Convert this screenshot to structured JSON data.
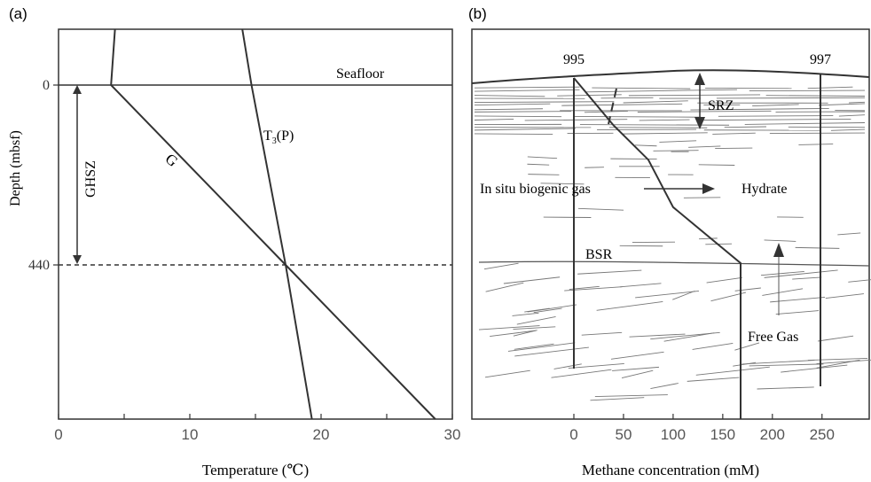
{
  "panel_a": {
    "label": "(a)",
    "seafloor_label": "Seafloor",
    "ghsz_label": "GHSZ",
    "tp_label_main": "T",
    "tp_label_sub": "3",
    "tp_label_tail": "(P)",
    "g_label": "G",
    "ylabel": "Depth (mbsf)",
    "xlabel": "Temperature (℃)",
    "xticks": [
      "0",
      "10",
      "20",
      "30"
    ],
    "yticks": [
      "0",
      "440"
    ]
  },
  "panel_b": {
    "label": "(b)",
    "site_left": "995",
    "site_right": "997",
    "srz_label": "SRZ",
    "biogenic_label": "In situ biogenic gas",
    "hydrate_label": "Hydrate",
    "bsr_label": "BSR",
    "free_gas_label": "Free Gas",
    "xlabel": "Methane concentration (mM)",
    "xticks": [
      "0",
      "50",
      "100",
      "150",
      "200",
      "250"
    ]
  },
  "chart_data": [
    {
      "type": "line",
      "title": "(a)",
      "xlabel": "Temperature (℃)",
      "ylabel": "Depth (mbsf)",
      "xlim": [
        0,
        30
      ],
      "series": [
        {
          "name": "T3(P)",
          "x": [
            14.0,
            14.7,
            17.3,
            19.3
          ],
          "y": [
            -140,
            0,
            440,
            830
          ]
        },
        {
          "name": "G",
          "x": [
            4.3,
            4.0,
            17.3,
            28.7
          ],
          "y": [
            -140,
            0,
            440,
            830
          ]
        }
      ],
      "annotations": [
        "Seafloor",
        "GHSZ"
      ],
      "marks": {
        "seafloor_depth": 0,
        "ghsz_base_depth": 440
      }
    },
    {
      "type": "line",
      "title": "(b)",
      "xlabel": "Methane concentration (mM)",
      "xlim": [
        0,
        300
      ],
      "series": [
        {
          "name": "995",
          "x": [
            0,
            40,
            75,
            100,
            168,
            168
          ],
          "y": [
            0,
            110,
            190,
            300,
            430,
            830
          ]
        }
      ],
      "annotations": [
        "SRZ",
        "In situ biogenic gas",
        "Hydrate",
        "BSR",
        "Free Gas",
        "997"
      ]
    }
  ]
}
